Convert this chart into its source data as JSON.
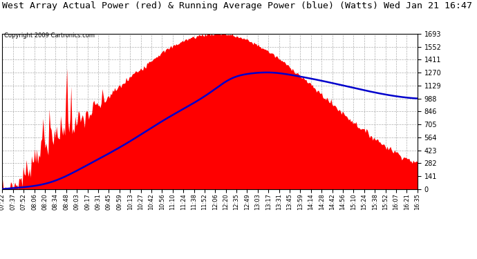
{
  "title": "West Array Actual Power (red) & Running Average Power (blue) (Watts) Wed Jan 21 16:47",
  "copyright": "Copyright 2009 Cartronics.com",
  "title_fontsize": 9.5,
  "copyright_fontsize": 6,
  "background_color": "#ffffff",
  "plot_bg_color": "#ffffff",
  "grid_color": "#999999",
  "fill_color": "#ff0000",
  "line_color": "#0000cc",
  "y_max": 1692.9,
  "y_min": 0.0,
  "y_ticks": [
    0.0,
    141.1,
    282.2,
    423.2,
    564.3,
    705.4,
    846.5,
    987.5,
    1128.6,
    1269.7,
    1410.8,
    1551.8,
    1692.9
  ],
  "x_labels": [
    "07:22",
    "07:37",
    "07:52",
    "08:06",
    "08:20",
    "08:34",
    "08:48",
    "09:03",
    "09:17",
    "09:31",
    "09:45",
    "09:59",
    "10:13",
    "10:27",
    "10:42",
    "10:56",
    "11:10",
    "11:24",
    "11:38",
    "11:52",
    "12:06",
    "12:20",
    "12:35",
    "12:49",
    "13:03",
    "13:17",
    "13:31",
    "13:45",
    "13:59",
    "14:14",
    "14:28",
    "14:42",
    "14:56",
    "15:10",
    "15:24",
    "15:38",
    "15:52",
    "16:07",
    "16:21",
    "16:35"
  ],
  "num_points": 400
}
